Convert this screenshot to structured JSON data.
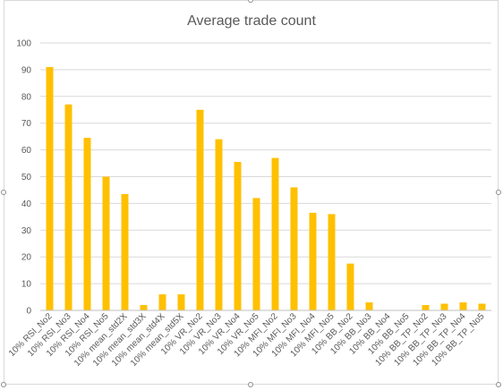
{
  "chart_data": {
    "type": "bar",
    "title": "Average trade count",
    "xlabel": "",
    "ylabel": "",
    "ylim": [
      0,
      100
    ],
    "yticks": [
      0,
      10,
      20,
      30,
      40,
      50,
      60,
      70,
      80,
      90,
      100
    ],
    "grid": true,
    "legend": "none",
    "bar_color": "#FFC000",
    "categories": [
      "10% RSI_No2",
      "10% RSI_No3",
      "10% RSI_No4",
      "10% RSI_No5",
      "10% mean_std2X",
      "10% mean_std3X",
      "10% mean_std4X",
      "10% mean_std5X",
      "10% VR_No2",
      "10% VR_No3",
      "10% VR_No4",
      "10% VR_No5",
      "10% MFI_No2",
      "10% MFI_No3",
      "10% MFI_No4",
      "10% MFI_No5",
      "10% BB_No2",
      "10% BB_No3",
      "10% BB_No4",
      "10% BB_No5",
      "10% BB_TP_No2",
      "10% BB_TP_No3",
      "10% BB_TP_No4",
      "10% BB_TP_No5"
    ],
    "values": [
      91,
      77,
      64.5,
      50,
      43.5,
      2,
      6,
      6,
      75,
      64,
      55.5,
      42,
      57,
      46,
      36.5,
      36,
      17.5,
      3,
      0,
      0,
      2,
      2.5,
      3,
      2.5
    ]
  }
}
